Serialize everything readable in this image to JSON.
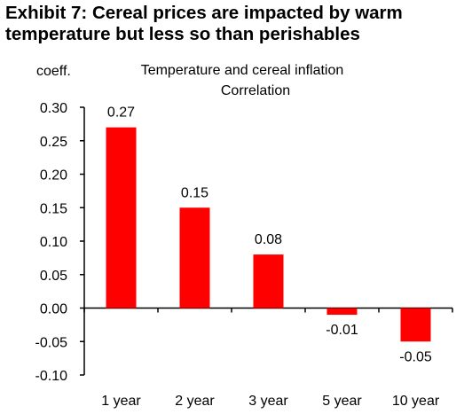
{
  "exhibit": {
    "title_line1": "Exhibit 7: Cereal prices are impacted by warm",
    "title_line2": "temperature but less so than perishables"
  },
  "chart_data": {
    "type": "bar",
    "title": "Temperature and cereal inflation",
    "subtitle": "Correlation",
    "ylabel": "coeff.",
    "xlabel": "",
    "categories": [
      "1 year",
      "2 year",
      "3 year",
      "5 year",
      "10 year"
    ],
    "values": [
      0.27,
      0.15,
      0.08,
      -0.01,
      -0.05
    ],
    "data_labels": [
      "0.27",
      "0.15",
      "0.08",
      "-0.01",
      "-0.05"
    ],
    "ylim": [
      -0.1,
      0.3
    ],
    "yticks": [
      0.3,
      0.25,
      0.2,
      0.15,
      0.1,
      0.05,
      0.0,
      -0.05,
      -0.1
    ],
    "ytick_labels": [
      "0.30",
      "0.25",
      "0.20",
      "0.15",
      "0.10",
      "0.05",
      "0.00",
      "-0.05",
      "-0.10"
    ],
    "bar_color": "#ff0000",
    "grid": false,
    "legend": "none"
  }
}
